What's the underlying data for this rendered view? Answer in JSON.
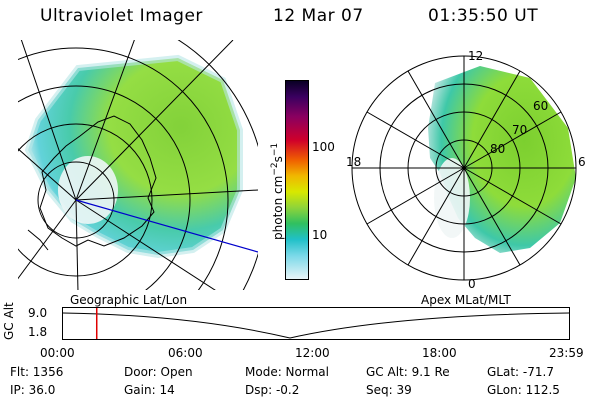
{
  "header": {
    "instrument": "Ultraviolet Imager",
    "date": "12 Mar 07",
    "time": "01:35:50 UT"
  },
  "left_map": {
    "caption": "Geographic Lat/Lon"
  },
  "right_map": {
    "caption": "Apex MLat/MLT",
    "lat_labels": [
      "60",
      "70",
      "80"
    ],
    "mlt_labels": {
      "top": "12",
      "left": "18",
      "right": "6",
      "bottom": "0"
    }
  },
  "colorbar": {
    "unit_label": "photon cm",
    "unit_sup1": "−2",
    "unit_mid": "s",
    "unit_sup2": "−1",
    "tick_labels": [
      "100",
      "10"
    ]
  },
  "altitude_plot": {
    "ylabel": "GC Alt",
    "ytick_labels": [
      "9.0",
      "1.8"
    ],
    "xtick_labels": [
      "00:00",
      "06:00",
      "12:00",
      "18:00",
      "23:59"
    ],
    "current_time_hours": 1.6
  },
  "info": {
    "flt": "Flt:  1356",
    "ip": "IP:  36.0",
    "door": "Door:  Open",
    "gain": "Gain:  14",
    "mode": "Mode:  Normal",
    "dsp": "Dsp:     -0.2",
    "gcalt": "GC Alt:  9.1 Re",
    "seq": "Seq:  39",
    "glat": "GLat:  -71.7",
    "glon": "GLon:  112.5"
  },
  "colors": {
    "timeline_marker": "#e00000",
    "meridian_line": "#0000cc"
  }
}
